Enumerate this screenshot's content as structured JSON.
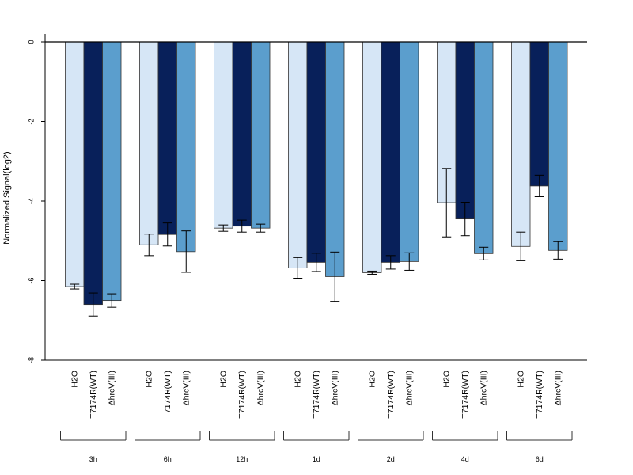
{
  "chart_data": {
    "type": "bar",
    "title": "",
    "xlabel": "",
    "ylabel": "Normalized Signal(log2)",
    "ylim": [
      -8,
      0.2
    ],
    "yticks": [
      0,
      -2,
      -4,
      -6,
      -8
    ],
    "ytick_labels": [
      "0",
      "-2",
      "-4",
      "-6",
      "-8"
    ],
    "groups": [
      "3h",
      "6h",
      "12h",
      "1d",
      "2d",
      "4d",
      "6d"
    ],
    "bar_labels": [
      "H2O",
      "T7174R(WT)",
      "ΔhrcV(III)"
    ],
    "colors": [
      "#d6e6f6",
      "#08205a",
      "#5b9ecd"
    ],
    "grid": false,
    "legend": "none",
    "series": [
      {
        "values": [
          -6.15,
          -5.1,
          -4.68,
          -5.68,
          -5.8,
          -4.04,
          -5.14
        ],
        "errors": [
          0.06,
          0.27,
          0.08,
          0.26,
          0.04,
          0.86,
          0.36
        ]
      },
      {
        "values": [
          -6.6,
          -4.84,
          -4.63,
          -5.54,
          -5.54,
          -4.45,
          -3.62
        ],
        "errors": [
          0.29,
          0.29,
          0.15,
          0.23,
          0.17,
          0.42,
          0.27
        ]
      },
      {
        "values": [
          -6.5,
          -5.27,
          -4.68,
          -5.9,
          -5.52,
          -5.32,
          -5.24
        ],
        "errors": [
          0.17,
          0.52,
          0.1,
          0.62,
          0.22,
          0.16,
          0.22
        ]
      }
    ]
  }
}
